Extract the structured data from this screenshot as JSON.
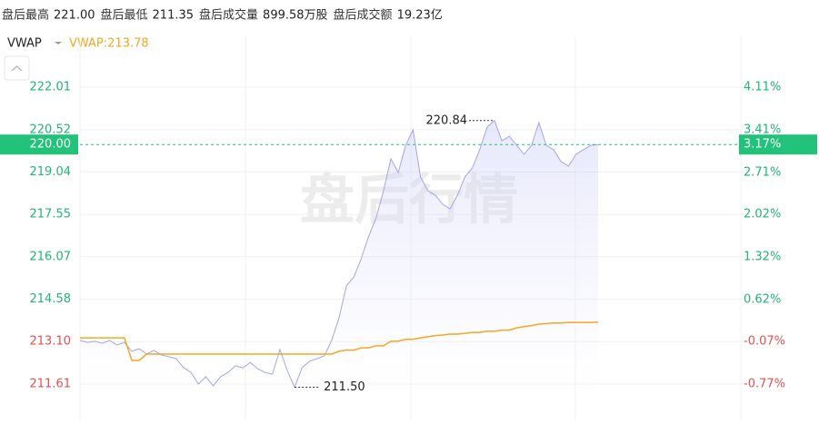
{
  "stats": [
    {
      "label": "盘后最高",
      "value": "221.00"
    },
    {
      "label": "盘后最低",
      "value": "211.35"
    },
    {
      "label": "盘后成交量",
      "value": "899.58万股"
    },
    {
      "label": "盘后成交额",
      "value": "19.23亿"
    }
  ],
  "toolbar": {
    "indicator": "VWAP",
    "legend": "VWAP:213.78"
  },
  "chart_data": {
    "type": "line",
    "watermark": "盘后行情",
    "ylim": [
      210.34,
      223.79
    ],
    "yticks": [
      222.01,
      220.52,
      219.04,
      217.55,
      216.07,
      214.58,
      {
        "value": 213.1,
        "label": "213.10"
      },
      211.61
    ],
    "ytick_colors": [
      "#22b573",
      "#22b573",
      "#22b573",
      "#22b573",
      "#22b573",
      "#22b573",
      "#e65050",
      "#e65050"
    ],
    "y2lim": [
      -1.37,
      4.95
    ],
    "y2ticks": [
      {
        "value": 4.11,
        "label": "4.11%"
      },
      {
        "value": 3.41,
        "label": "3.41%"
      },
      {
        "value": 2.71,
        "label": "2.71%"
      },
      {
        "value": 2.02,
        "label": "2.02%"
      },
      {
        "value": 1.32,
        "label": "1.32%"
      },
      {
        "value": 0.62,
        "label": "0.62%"
      },
      {
        "value": -0.07,
        "label": "-0.07%"
      },
      {
        "value": -0.77,
        "label": "-0.77%"
      }
    ],
    "y2tick_colors": [
      "#22b573",
      "#22b573",
      "#22b573",
      "#22b573",
      "#22b573",
      "#22b573",
      "#e65050",
      "#e65050"
    ],
    "grid": true,
    "reference_line": {
      "value": 220.0,
      "label": "220.00",
      "y2_label": "3.17%",
      "color": "#22c27a"
    },
    "annotations": [
      "220.84",
      "211.50"
    ],
    "series": [
      {
        "color": "#a3a6e8",
        "values": [
          213.14,
          213.07,
          213.11,
          213.04,
          213.14,
          212.98,
          213.07,
          212.76,
          212.85,
          212.66,
          212.79,
          212.63,
          212.57,
          212.5,
          212.18,
          212.02,
          211.61,
          211.87,
          211.55,
          211.87,
          212.02,
          212.25,
          212.18,
          212.37,
          212.15,
          212.02,
          211.96,
          212.82,
          212.09,
          211.5,
          212.18,
          212.41,
          212.5,
          212.6,
          213.14,
          213.93,
          215.05,
          215.36,
          216.0,
          216.79,
          217.43,
          218.38,
          219.5,
          219.02,
          219.97,
          220.52,
          218.86,
          218.38,
          218.23,
          217.91,
          217.75,
          218.23,
          218.86,
          219.18,
          219.82,
          220.61,
          220.84,
          220.13,
          220.29,
          219.97,
          219.66,
          219.97,
          220.77,
          219.97,
          219.82,
          219.4,
          219.24,
          219.66,
          219.82,
          219.97,
          220.0
        ]
      },
      {
        "name": "VWAP",
        "color": "#f5a623",
        "values": [
          213.23,
          213.23,
          213.23,
          213.23,
          213.23,
          213.23,
          213.23,
          212.44,
          212.44,
          212.66,
          212.66,
          212.66,
          212.66,
          212.66,
          212.66,
          212.66,
          212.66,
          212.66,
          212.66,
          212.66,
          212.66,
          212.66,
          212.66,
          212.66,
          212.66,
          212.66,
          212.66,
          212.66,
          212.66,
          212.66,
          212.66,
          212.66,
          212.66,
          212.66,
          212.66,
          212.76,
          212.8,
          212.8,
          212.88,
          212.88,
          212.95,
          212.95,
          213.11,
          213.11,
          213.18,
          213.18,
          213.23,
          213.27,
          213.31,
          213.33,
          213.36,
          213.36,
          213.39,
          213.42,
          213.42,
          213.46,
          213.46,
          213.5,
          213.5,
          213.58,
          213.62,
          213.66,
          213.71,
          213.73,
          213.75,
          213.75,
          213.77,
          213.77,
          213.77,
          213.77,
          213.78
        ]
      }
    ]
  }
}
